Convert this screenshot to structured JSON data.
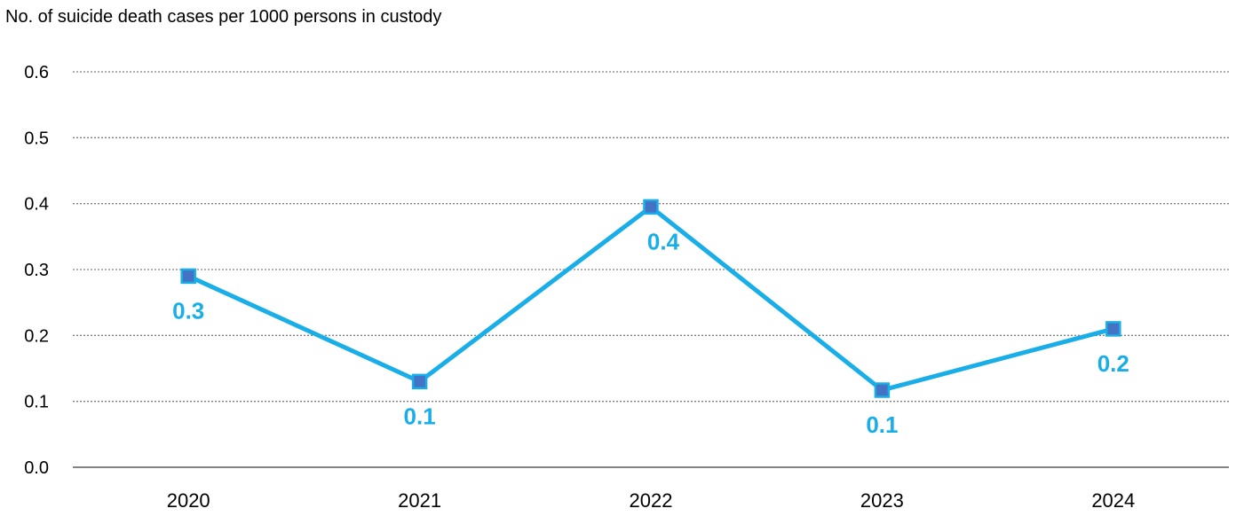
{
  "chart_data": {
    "type": "line",
    "title": "",
    "ylabel": "No. of suicide death cases per 1000 persons in custody",
    "xlabel": "",
    "categories": [
      "2020",
      "2021",
      "2022",
      "2023",
      "2024"
    ],
    "series": [
      {
        "values": [
          0.29,
          0.13,
          0.395,
          0.117,
          0.21
        ],
        "data_labels": [
          "0.3",
          "0.1",
          "0.4",
          "0.1",
          "0.2"
        ],
        "color": "#1aaee8",
        "marker_color": "#4472c4"
      }
    ],
    "ylim": [
      0,
      0.6
    ],
    "y_ticks": [
      "0.0",
      "0.1",
      "0.2",
      "0.3",
      "0.4",
      "0.5",
      "0.6"
    ],
    "grid": true,
    "legend": "none"
  }
}
